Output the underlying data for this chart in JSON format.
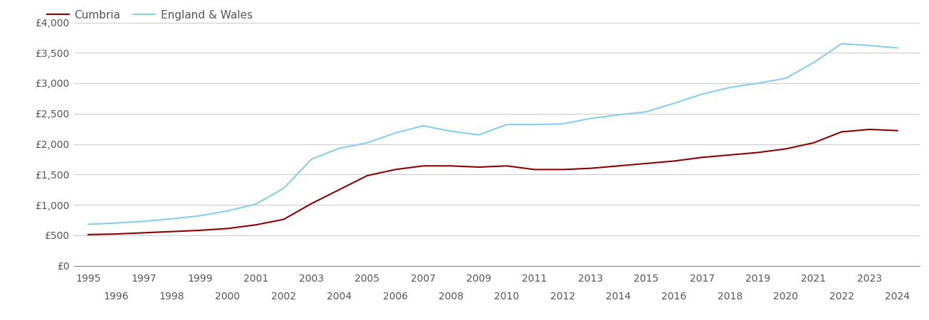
{
  "cumbria_color": "#8B0000",
  "england_wales_color": "#87CEEB",
  "legend_labels": [
    "Cumbria",
    "England & Wales"
  ],
  "years": [
    1995,
    1996,
    1997,
    1998,
    1999,
    2000,
    2001,
    2002,
    2003,
    2004,
    2005,
    2006,
    2007,
    2008,
    2009,
    2010,
    2011,
    2012,
    2013,
    2014,
    2015,
    2016,
    2017,
    2018,
    2019,
    2020,
    2021,
    2022,
    2023,
    2024
  ],
  "cumbria": [
    510,
    520,
    540,
    560,
    580,
    610,
    670,
    760,
    1020,
    1250,
    1480,
    1580,
    1640,
    1640,
    1620,
    1640,
    1580,
    1580,
    1600,
    1640,
    1680,
    1720,
    1780,
    1820,
    1860,
    1920,
    2020,
    2200,
    2240,
    2220
  ],
  "england_wales": [
    680,
    700,
    730,
    770,
    820,
    900,
    1010,
    1270,
    1750,
    1930,
    2020,
    2180,
    2300,
    2210,
    2150,
    2320,
    2320,
    2330,
    2420,
    2480,
    2530,
    2670,
    2820,
    2930,
    3000,
    3080,
    3340,
    3650,
    3620,
    3580
  ],
  "ylim": [
    0,
    4000
  ],
  "yticks": [
    0,
    500,
    1000,
    1500,
    2000,
    2500,
    3000,
    3500,
    4000
  ],
  "ytick_labels": [
    "£0",
    "£500",
    "£1,000",
    "£1,500",
    "£2,000",
    "£2,500",
    "£3,000",
    "£3,500",
    "£4,000"
  ],
  "background_color": "#ffffff",
  "grid_color": "#cccccc",
  "line_width": 1.5,
  "x_tick_odd": [
    1995,
    1997,
    1999,
    2001,
    2003,
    2005,
    2007,
    2009,
    2011,
    2013,
    2015,
    2017,
    2019,
    2021,
    2023
  ],
  "x_tick_even": [
    1996,
    1998,
    2000,
    2002,
    2004,
    2006,
    2008,
    2010,
    2012,
    2014,
    2016,
    2018,
    2020,
    2022,
    2024
  ]
}
